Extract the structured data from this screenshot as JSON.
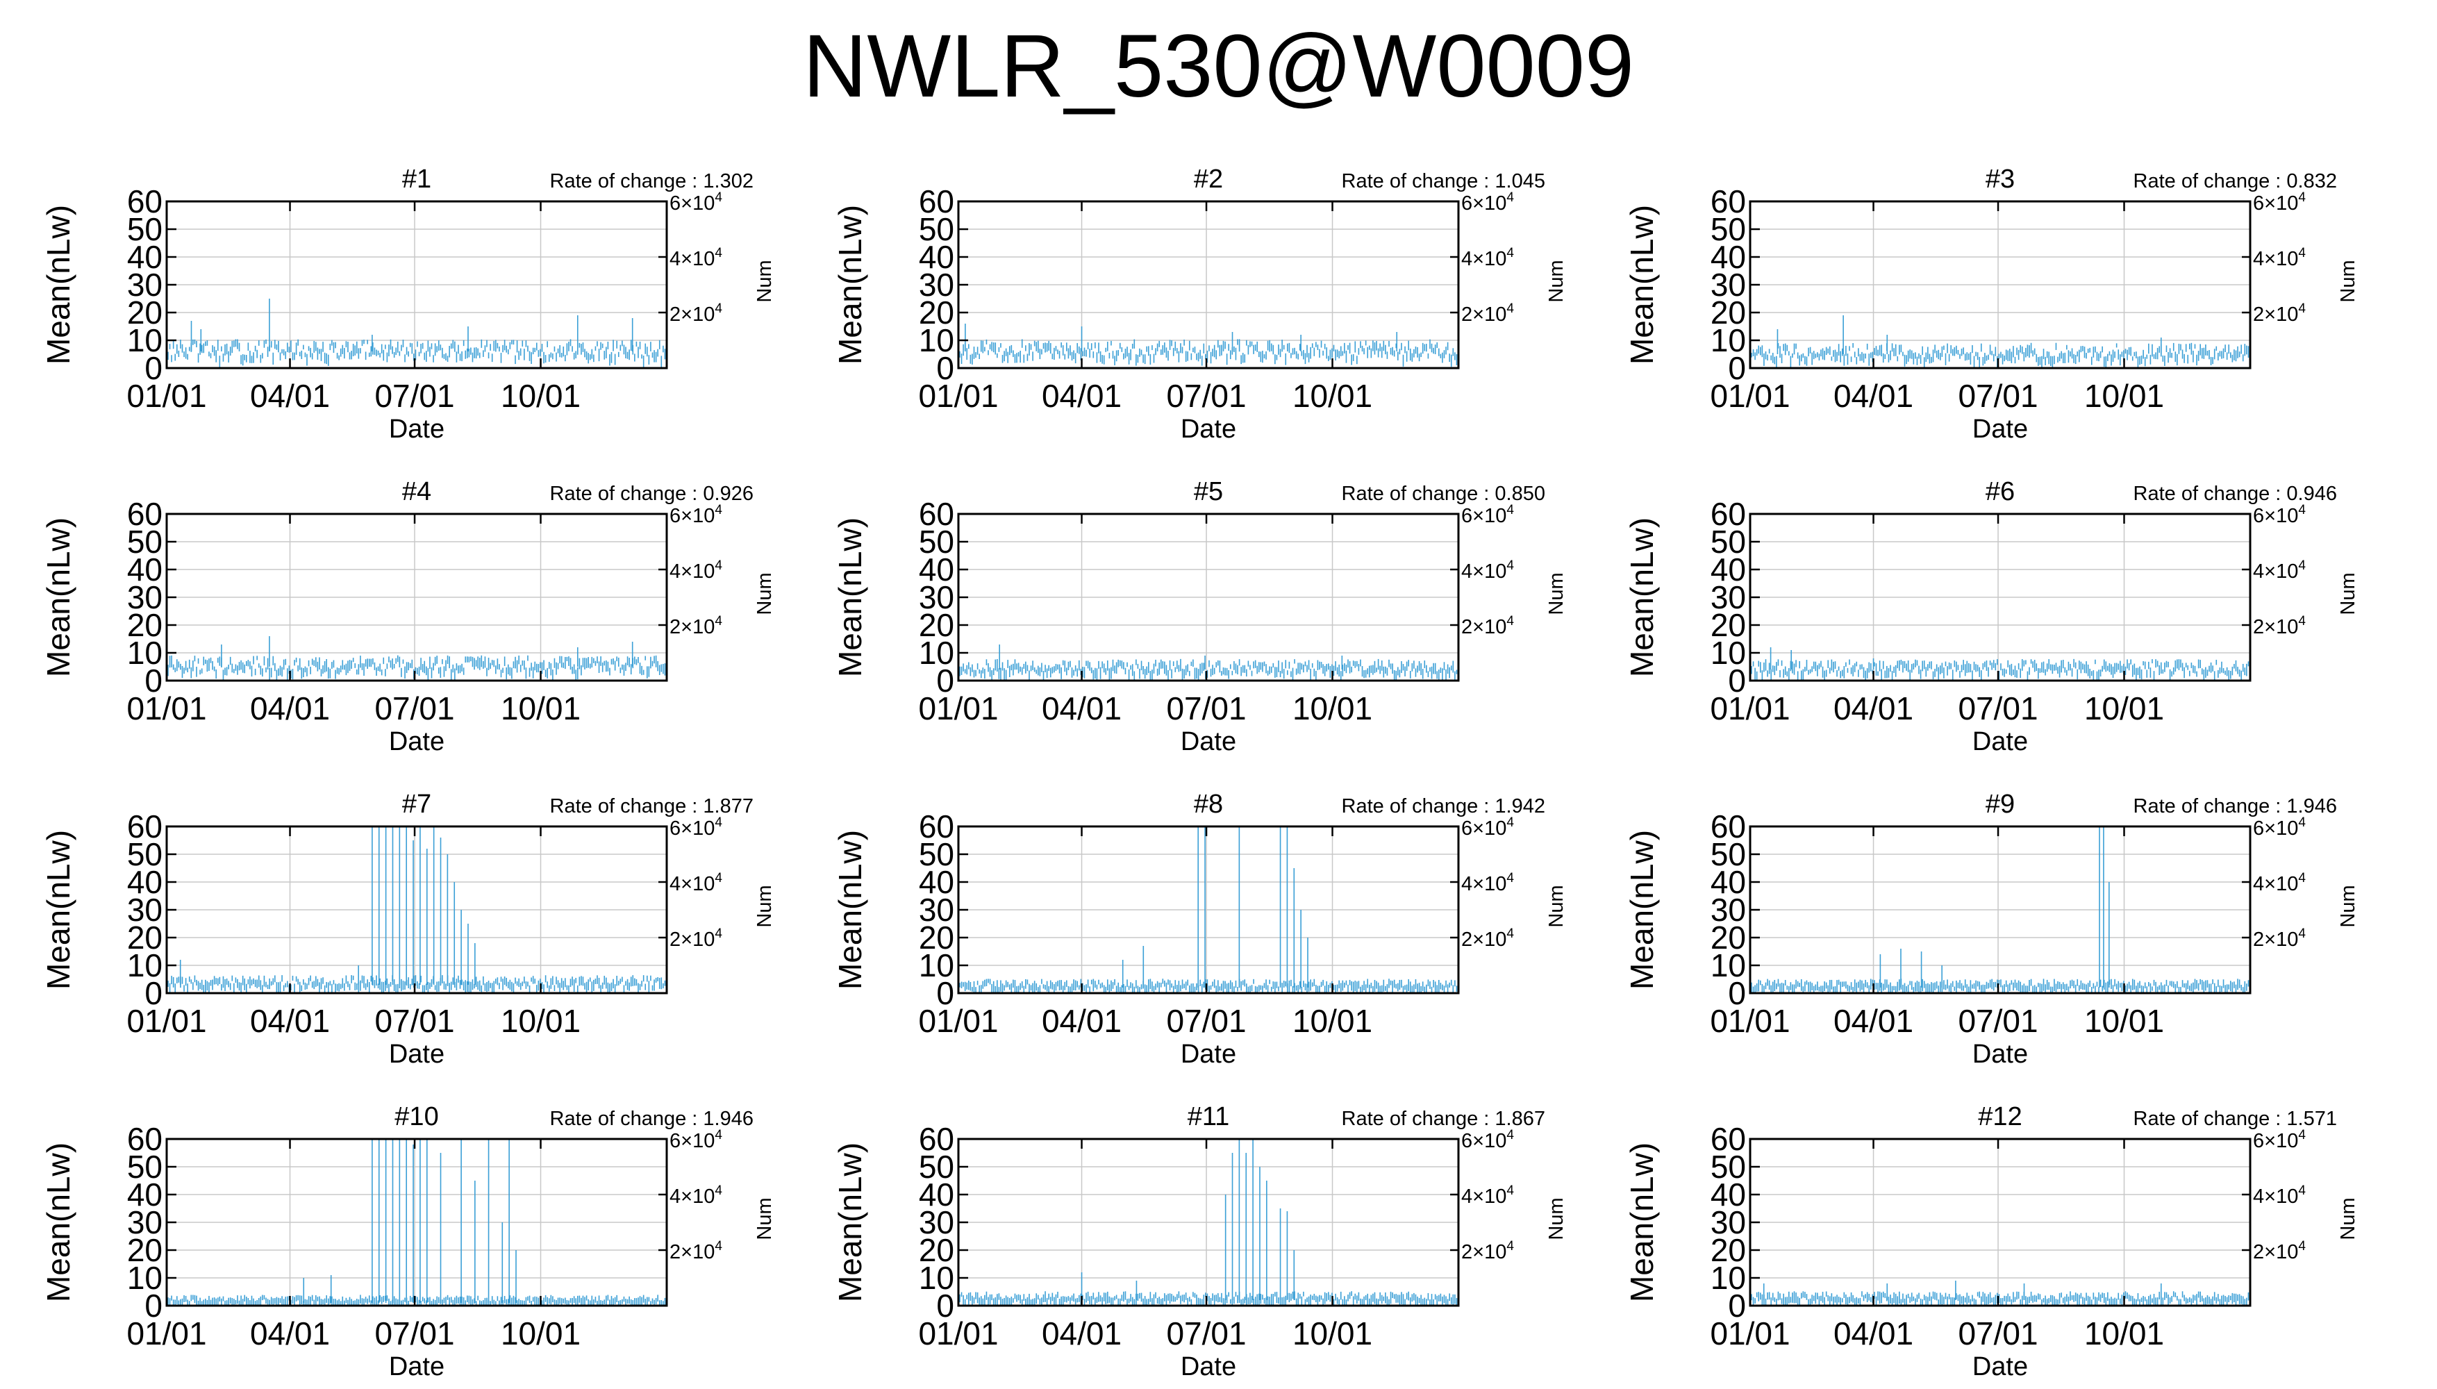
{
  "figure_title": "NWLR_530@W0009",
  "chart_data": {
    "type": "line",
    "shared": {
      "xlabel": "Date",
      "ylabel": "Mean(nLw)",
      "y2label": "Num",
      "x_ticks": [
        "01/01",
        "04/01",
        "07/01",
        "10/01"
      ],
      "x_tick_days": [
        0,
        90,
        181,
        273
      ],
      "xlim_days": [
        0,
        365
      ],
      "y_ticks": [
        0,
        10,
        20,
        30,
        40,
        50,
        60
      ],
      "ylim": [
        0,
        60
      ],
      "y2_ticks": [
        20000,
        40000,
        60000
      ],
      "y2_tick_mantissa": "2×10",
      "y2_tick_labels": [
        "2×10",
        "4×10",
        "6×10"
      ],
      "y2_tick_exp": "4",
      "rate_prefix": "Rate of change : ",
      "series_color": "#3a9fd6",
      "grid": true
    },
    "panels": [
      {
        "title": "#1",
        "rate": "1.302",
        "base": 8,
        "spikes": [
          [
            75,
            25
          ],
          [
            18,
            17
          ],
          [
            25,
            14
          ],
          [
            300,
            19
          ],
          [
            340,
            18
          ],
          [
            150,
            12
          ],
          [
            220,
            15
          ]
        ]
      },
      {
        "title": "#2",
        "rate": "1.045",
        "base": 8,
        "spikes": [
          [
            5,
            16
          ],
          [
            90,
            15
          ],
          [
            200,
            13
          ],
          [
            250,
            12
          ],
          [
            320,
            13
          ]
        ]
      },
      {
        "title": "#3",
        "rate": "0.832",
        "base": 7,
        "spikes": [
          [
            68,
            19
          ],
          [
            20,
            14
          ],
          [
            100,
            12
          ],
          [
            300,
            11
          ]
        ]
      },
      {
        "title": "#4",
        "rate": "0.926",
        "base": 7,
        "spikes": [
          [
            40,
            13
          ],
          [
            75,
            16
          ],
          [
            340,
            14
          ],
          [
            300,
            12
          ]
        ]
      },
      {
        "title": "#5",
        "rate": "0.850",
        "base": 6,
        "spikes": [
          [
            30,
            13
          ],
          [
            180,
            9
          ],
          [
            280,
            9
          ]
        ]
      },
      {
        "title": "#6",
        "rate": "0.946",
        "base": 6,
        "spikes": [
          [
            15,
            12
          ],
          [
            30,
            11
          ],
          [
            90,
            8
          ]
        ]
      },
      {
        "title": "#7",
        "rate": "1.877",
        "base": 5,
        "spikes": [
          [
            150,
            60
          ],
          [
            155,
            60
          ],
          [
            160,
            60
          ],
          [
            165,
            60
          ],
          [
            170,
            60
          ],
          [
            175,
            60
          ],
          [
            180,
            55
          ],
          [
            185,
            60
          ],
          [
            190,
            52
          ],
          [
            195,
            60
          ],
          [
            200,
            56
          ],
          [
            205,
            50
          ],
          [
            210,
            40
          ],
          [
            215,
            30
          ],
          [
            220,
            25
          ],
          [
            225,
            18
          ],
          [
            10,
            12
          ],
          [
            140,
            10
          ]
        ]
      },
      {
        "title": "#8",
        "rate": "1.942",
        "base": 4,
        "spikes": [
          [
            175,
            60
          ],
          [
            180,
            60
          ],
          [
            205,
            60
          ],
          [
            235,
            60
          ],
          [
            240,
            60
          ],
          [
            245,
            45
          ],
          [
            250,
            30
          ],
          [
            255,
            20
          ],
          [
            135,
            17
          ],
          [
            120,
            12
          ]
        ]
      },
      {
        "title": "#9",
        "rate": "1.946",
        "base": 4,
        "spikes": [
          [
            255,
            60
          ],
          [
            258,
            60
          ],
          [
            262,
            40
          ],
          [
            95,
            14
          ],
          [
            110,
            16
          ],
          [
            125,
            15
          ],
          [
            140,
            10
          ]
        ]
      },
      {
        "title": "#10",
        "rate": "1.946",
        "base": 3,
        "spikes": [
          [
            150,
            60
          ],
          [
            155,
            60
          ],
          [
            160,
            60
          ],
          [
            165,
            60
          ],
          [
            170,
            60
          ],
          [
            175,
            60
          ],
          [
            180,
            58
          ],
          [
            185,
            60
          ],
          [
            190,
            60
          ],
          [
            200,
            55
          ],
          [
            215,
            60
          ],
          [
            225,
            45
          ],
          [
            235,
            60
          ],
          [
            245,
            30
          ],
          [
            250,
            60
          ],
          [
            255,
            20
          ],
          [
            100,
            10
          ],
          [
            120,
            11
          ]
        ]
      },
      {
        "title": "#11",
        "rate": "1.867",
        "base": 4,
        "spikes": [
          [
            195,
            40
          ],
          [
            200,
            55
          ],
          [
            205,
            60
          ],
          [
            210,
            55
          ],
          [
            215,
            60
          ],
          [
            220,
            50
          ],
          [
            225,
            45
          ],
          [
            235,
            35
          ],
          [
            240,
            34
          ],
          [
            245,
            20
          ],
          [
            90,
            12
          ],
          [
            130,
            9
          ]
        ]
      },
      {
        "title": "#12",
        "rate": "1.571",
        "base": 4,
        "spikes": [
          [
            10,
            8
          ],
          [
            100,
            8
          ],
          [
            150,
            9
          ],
          [
            200,
            8
          ],
          [
            300,
            8
          ]
        ]
      }
    ]
  }
}
